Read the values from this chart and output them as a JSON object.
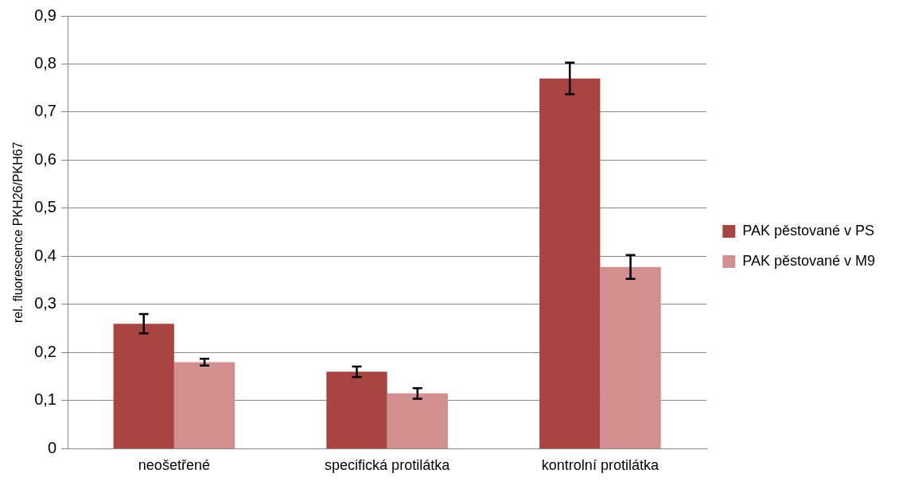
{
  "chart_data": {
    "type": "bar",
    "ylabel": "rel. fluorescence PKH26/PKH67",
    "categories": [
      "neošetřené",
      "specifická protilátka",
      "kontrolní protilátka"
    ],
    "series": [
      {
        "name": "PAK pěstované v PS",
        "color": "#a84543",
        "values": [
          0.26,
          0.16,
          0.77
        ],
        "errors": [
          0.02,
          0.011,
          0.033
        ]
      },
      {
        "name": "PAK pěstované v M9",
        "color": "#d29091",
        "values": [
          0.18,
          0.115,
          0.378
        ],
        "errors": [
          0.007,
          0.011,
          0.025
        ]
      }
    ],
    "ylim": [
      0,
      0.9
    ],
    "yticks": [
      0,
      {
        "value": 0.1,
        "label": "0,1"
      },
      {
        "value": 0.2,
        "label": "0,2"
      },
      {
        "value": 0.3,
        "label": "0,3"
      },
      {
        "value": 0.4,
        "label": "0,4"
      },
      {
        "value": 0.5,
        "label": "0,5"
      },
      {
        "value": 0.6,
        "label": "0,6"
      },
      {
        "value": 0.7,
        "label": "0,7"
      },
      {
        "value": 0.8,
        "label": "0,8"
      },
      {
        "value": 0.9,
        "label": "0,9"
      }
    ],
    "grid": "y",
    "legend": "right"
  }
}
